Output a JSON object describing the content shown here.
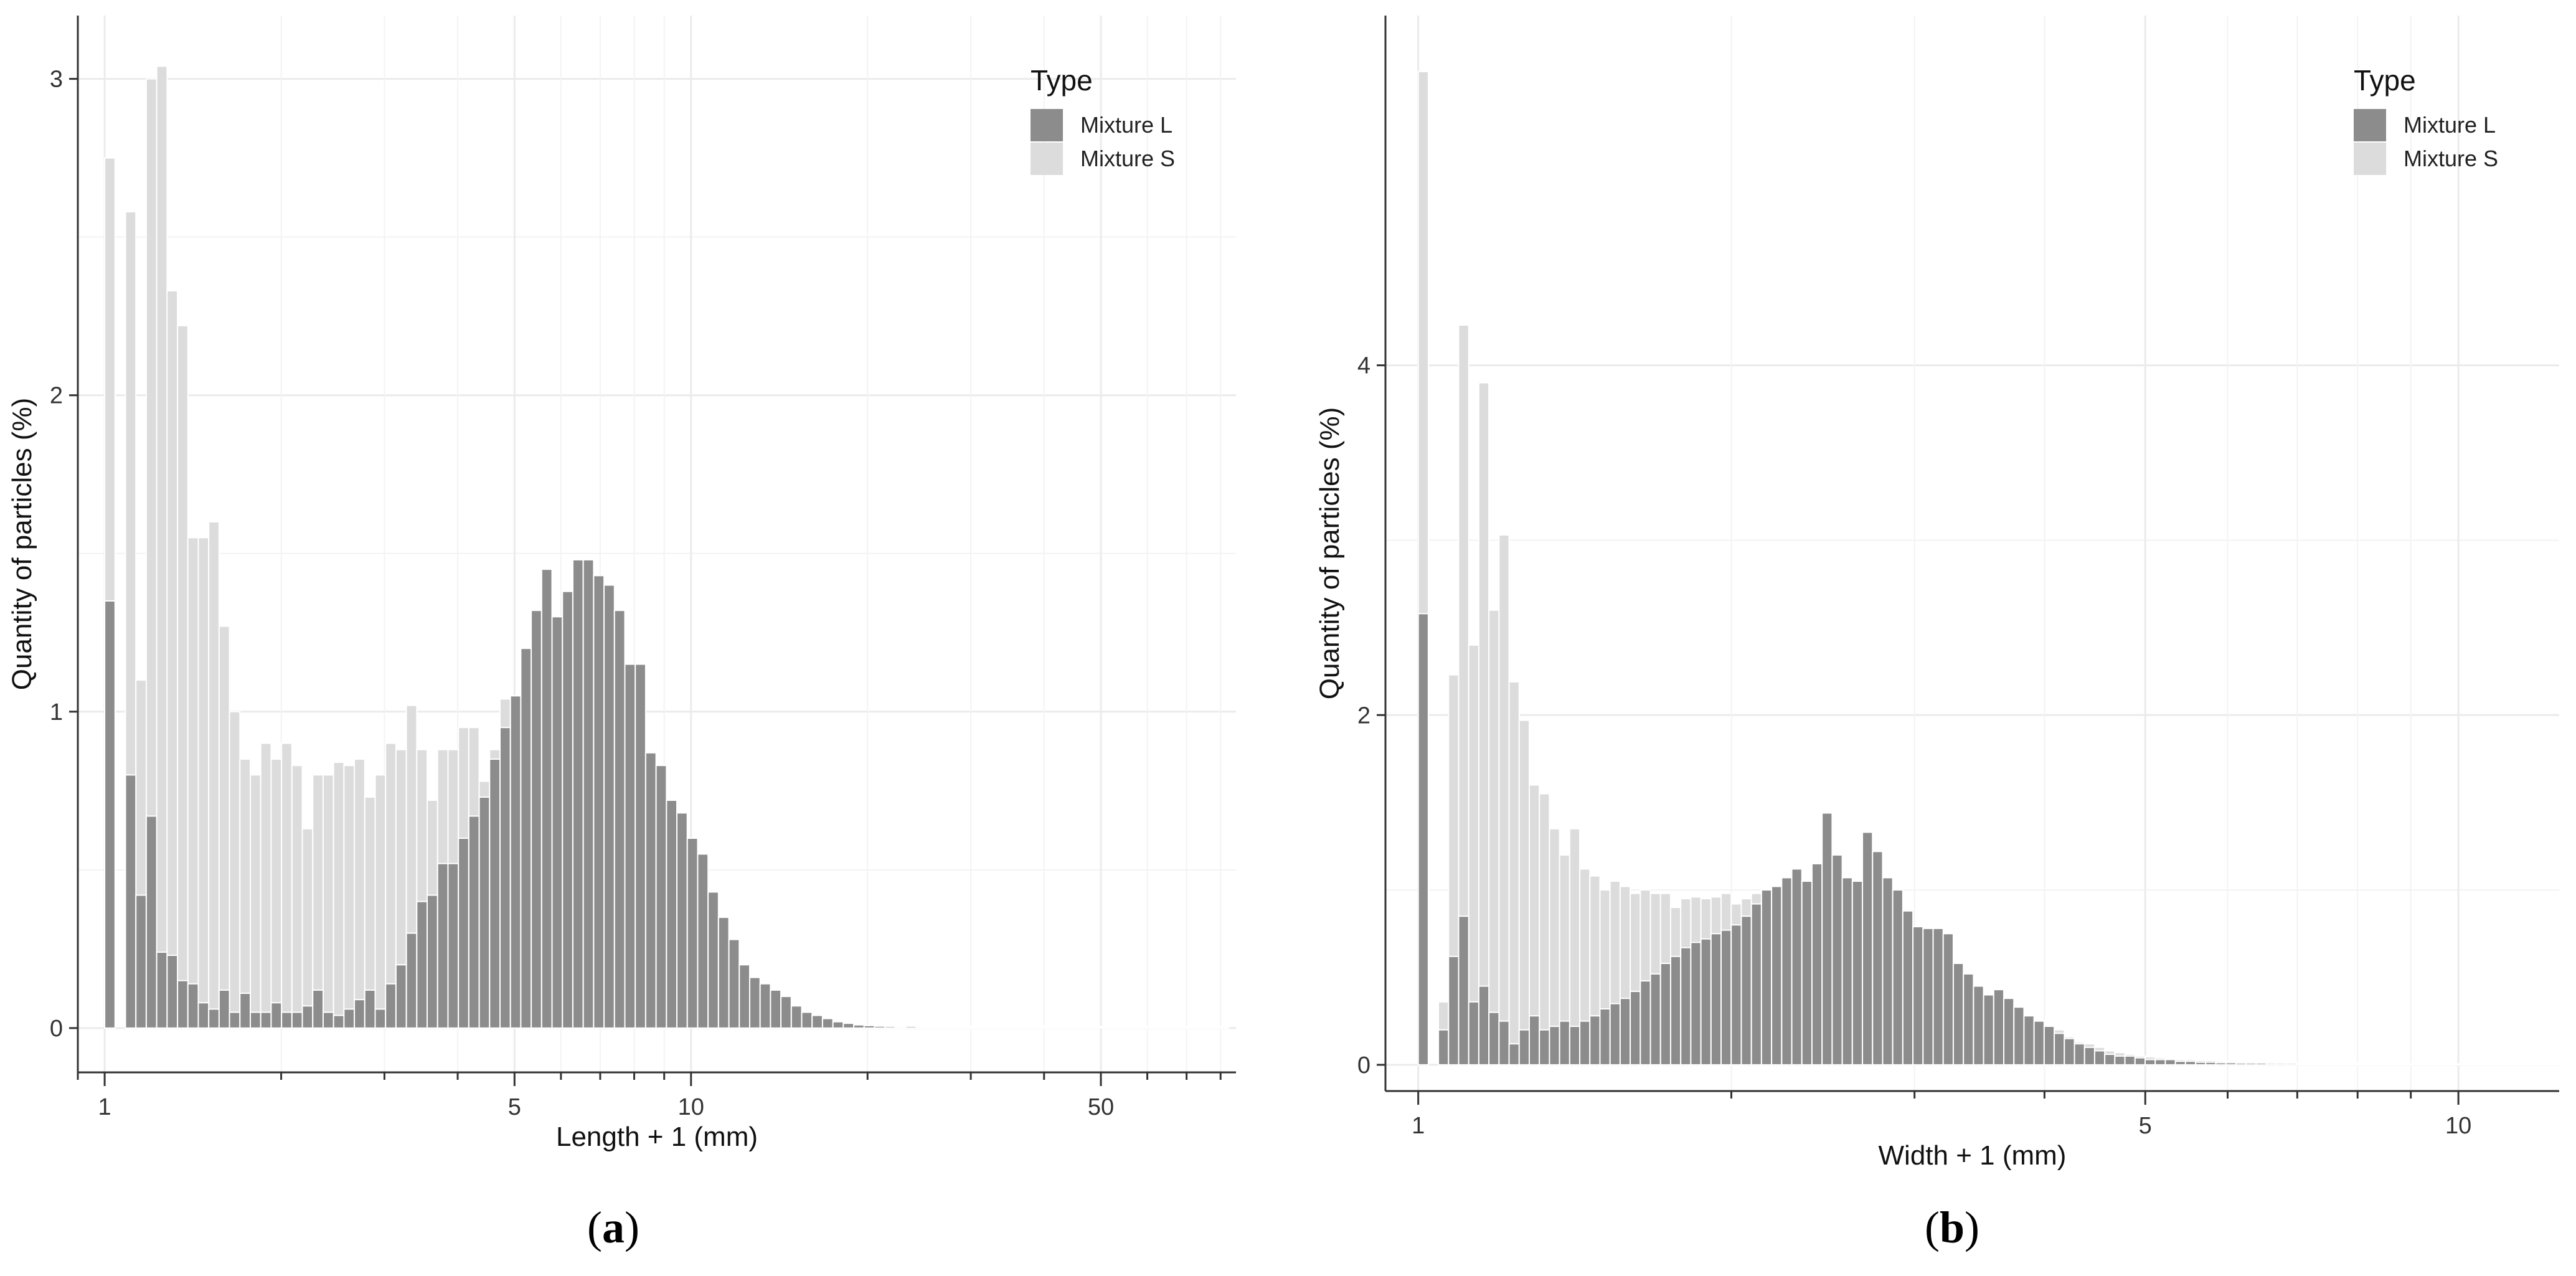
{
  "chart_data": [
    {
      "type": "bar",
      "panel_label": "a",
      "xlabel": "Length + 1 (mm)",
      "ylabel": "Quantity of particles (%)",
      "x_scale": "log10",
      "xlim": [
        0.9,
        85
      ],
      "ylim": [
        -0.14,
        3.2
      ],
      "x_ticks": [
        1,
        5,
        10,
        50
      ],
      "y_ticks": [
        0,
        1,
        2,
        3
      ],
      "x_minor_ticks": [
        0.9,
        2,
        3,
        4,
        6,
        7,
        8,
        9,
        20,
        30,
        40,
        60,
        70,
        80
      ],
      "grid": true,
      "legend": {
        "title": "Type",
        "position": "top-right",
        "entries": [
          "Mixture L",
          "Mixture S"
        ]
      },
      "colors": {
        "Mixture L": "#8c8c8c",
        "Mixture S": "#dcdcdc"
      },
      "bin_start": 1.0,
      "bin_ratio": 1.0417,
      "series": [
        {
          "name": "Mixture L",
          "values": [
            1.35,
            0,
            0.8,
            0.42,
            0.67,
            0.24,
            0.23,
            0.15,
            0.14,
            0.08,
            0.06,
            0.12,
            0.05,
            0.11,
            0.05,
            0.05,
            0.08,
            0.05,
            0.05,
            0.07,
            0.12,
            0.05,
            0.04,
            0.06,
            0.09,
            0.12,
            0.06,
            0.14,
            0.2,
            0.3,
            0.4,
            0.42,
            0.52,
            0.52,
            0.6,
            0.67,
            0.73,
            0.85,
            0.95,
            1.05,
            1.2,
            1.32,
            1.45,
            1.3,
            1.38,
            1.48,
            1.48,
            1.43,
            1.4,
            1.32,
            1.15,
            1.15,
            0.87,
            0.83,
            0.72,
            0.68,
            0.6,
            0.55,
            0.43,
            0.35,
            0.28,
            0.2,
            0.16,
            0.14,
            0.12,
            0.1,
            0.07,
            0.05,
            0.04,
            0.03,
            0.02,
            0.015,
            0.01,
            0.008,
            0.006,
            0.005,
            0.004,
            0.005,
            0.004,
            0.003,
            0.003,
            0.004,
            0.003,
            0.002,
            0.004,
            0.002,
            0.003,
            0.002,
            0.003,
            0.002,
            0.002,
            0.002,
            0.002,
            0.002,
            0.002,
            0.002,
            0.002,
            0.002,
            0.002,
            0.002,
            0.002,
            0.002,
            0.002,
            0.002,
            0.002,
            0.002,
            0.002,
            0.004
          ]
        },
        {
          "name": "Mixture S",
          "values": [
            2.75,
            0,
            2.58,
            1.1,
            3.0,
            3.04,
            2.33,
            2.22,
            1.55,
            1.55,
            1.6,
            1.27,
            1.0,
            0.85,
            0.8,
            0.9,
            0.85,
            0.9,
            0.83,
            0.63,
            0.8,
            0.8,
            0.84,
            0.83,
            0.85,
            0.73,
            0.8,
            0.9,
            0.88,
            1.02,
            0.88,
            0.72,
            0.88,
            0.88,
            0.95,
            0.95,
            0.78,
            0.88,
            1.04,
            1.04,
            1.1,
            1.14,
            1.1,
            1.18,
            1.2,
            1.1,
            1.1,
            1.02,
            0.96,
            0.9,
            0.88,
            0.8,
            0.75,
            0.65,
            0.58,
            0.5,
            0.45,
            0.35,
            0.3,
            0.25,
            0.2,
            0.16,
            0.12,
            0.1,
            0.08,
            0.06,
            0.04,
            0.03,
            0.02,
            0.015,
            0.01,
            0.01,
            0.008,
            0.008,
            0.006,
            0.006,
            0.006,
            0.005,
            0.005,
            0.005,
            0.005,
            0.005,
            0.005,
            0.005,
            0.005,
            0.005,
            0.005,
            0.005,
            0.005,
            0.005,
            0.005,
            0.005,
            0.005,
            0.005,
            0.005,
            0.005,
            0.005,
            0.005,
            0.005,
            0.005,
            0.005,
            0.005,
            0.005,
            0.005,
            0.005,
            0.005,
            0.005,
            0.005
          ]
        }
      ]
    },
    {
      "type": "bar",
      "panel_label": "b",
      "xlabel": "Width + 1 (mm)",
      "ylabel": "Quantity of particles (%)",
      "x_scale": "log10",
      "xlim": [
        0.93,
        12.5
      ],
      "ylim": [
        -0.15,
        6.0
      ],
      "x_ticks": [
        1,
        5,
        10
      ],
      "y_ticks": [
        0,
        2,
        4
      ],
      "x_minor_ticks": [
        2,
        3,
        4,
        6,
        7,
        8,
        9
      ],
      "grid": true,
      "legend": {
        "title": "Type",
        "position": "top-right",
        "entries": [
          "Mixture L",
          "Mixture S"
        ]
      },
      "colors": {
        "Mixture L": "#8c8c8c",
        "Mixture S": "#dcdcdc"
      },
      "bin_start": 1.0,
      "bin_ratio": 1.0226,
      "series": [
        {
          "name": "Mixture L",
          "values": [
            2.58,
            0,
            0.2,
            0.62,
            0.85,
            0.36,
            0.45,
            0.3,
            0.25,
            0.12,
            0.2,
            0.28,
            0.2,
            0.22,
            0.25,
            0.22,
            0.25,
            0.28,
            0.32,
            0.35,
            0.38,
            0.42,
            0.48,
            0.52,
            0.58,
            0.62,
            0.67,
            0.7,
            0.72,
            0.75,
            0.77,
            0.8,
            0.85,
            0.92,
            1.0,
            1.02,
            1.07,
            1.12,
            1.05,
            1.15,
            1.44,
            1.2,
            1.07,
            1.05,
            1.33,
            1.22,
            1.07,
            1.0,
            0.88,
            0.79,
            0.78,
            0.78,
            0.75,
            0.58,
            0.52,
            0.45,
            0.4,
            0.43,
            0.38,
            0.33,
            0.28,
            0.25,
            0.22,
            0.18,
            0.15,
            0.12,
            0.1,
            0.08,
            0.06,
            0.05,
            0.05,
            0.04,
            0.03,
            0.03,
            0.03,
            0.02,
            0.02,
            0.015,
            0.015,
            0.012,
            0.012,
            0.01,
            0.01,
            0.01,
            0.008,
            0.008,
            0.008,
            0.006,
            0.006,
            0.006,
            0.005,
            0.005,
            0.005,
            0.005,
            0.004,
            0.004,
            0.004,
            0.004,
            0.003,
            0.003,
            0.003,
            0.003,
            0.003,
            0.003,
            0.003,
            0.003,
            0.003,
            0.003,
            0.003,
            0.003,
            0.003,
            0.003,
            0.003,
            0.003
          ]
        },
        {
          "name": "Mixture S",
          "values": [
            5.68,
            0,
            0.36,
            2.23,
            4.23,
            2.4,
            3.9,
            2.6,
            3.03,
            2.19,
            1.97,
            1.6,
            1.55,
            1.35,
            1.2,
            1.35,
            1.12,
            1.08,
            1.0,
            1.05,
            1.02,
            0.98,
            1.0,
            0.98,
            0.98,
            0.9,
            0.95,
            0.96,
            0.95,
            0.96,
            0.98,
            0.92,
            0.95,
            0.98,
            0.95,
            0.92,
            0.95,
            0.98,
            1.0,
            0.98,
            1.0,
            0.97,
            0.92,
            0.9,
            0.86,
            0.85,
            0.8,
            0.77,
            0.72,
            0.7,
            0.65,
            0.62,
            0.58,
            0.55,
            0.48,
            0.45,
            0.4,
            0.38,
            0.35,
            0.3,
            0.28,
            0.25,
            0.22,
            0.2,
            0.16,
            0.13,
            0.12,
            0.1,
            0.08,
            0.07,
            0.06,
            0.05,
            0.045,
            0.04,
            0.035,
            0.03,
            0.03,
            0.025,
            0.025,
            0.02,
            0.02,
            0.018,
            0.018,
            0.015,
            0.015,
            0.012,
            0.012,
            0.01,
            0.01,
            0.01,
            0.01,
            0.01,
            0.008,
            0.008,
            0.008,
            0.008,
            0.006,
            0.006,
            0.006,
            0.006,
            0.006,
            0.006,
            0.005,
            0.005,
            0.005,
            0.005,
            0.005,
            0.005,
            0.005,
            0.005,
            0.005,
            0.005,
            0.005,
            0.005
          ]
        }
      ]
    }
  ]
}
